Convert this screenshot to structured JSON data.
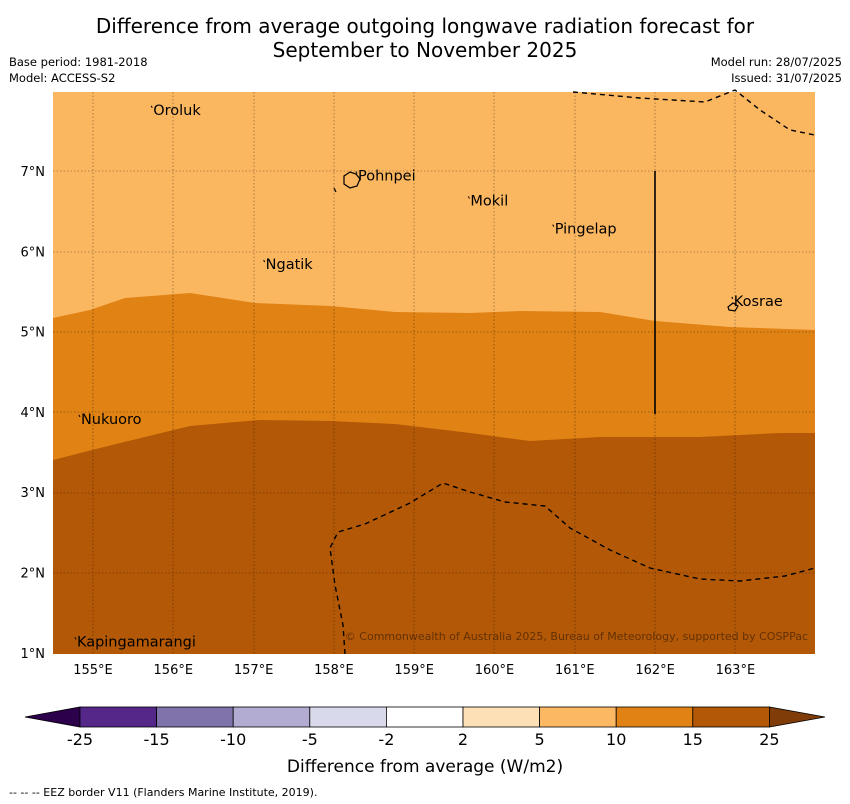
{
  "header": {
    "title_line1": "Difference from average outgoing longwave radiation forecast for",
    "title_line2": "September to November 2025",
    "base_period": "Base period: 1981-2018",
    "model": "Model: ACCESS-S2",
    "model_run": "Model run: 28/07/2025",
    "issued": "Issued: 31/07/2025"
  },
  "map": {
    "lat_labels": [
      "7°N",
      "6°N",
      "5°N",
      "4°N",
      "3°N",
      "2°N",
      "1°N"
    ],
    "lon_labels": [
      "155°E",
      "156°E",
      "157°E",
      "158°E",
      "159°E",
      "160°E",
      "161°E",
      "162°E",
      "163°E"
    ],
    "places": [
      {
        "name": "Oroluk",
        "lon": 155.75,
        "lat": 7.7
      },
      {
        "name": "Pohnpei",
        "lon": 158.3,
        "lat": 6.88
      },
      {
        "name": "Mokil",
        "lon": 159.7,
        "lat": 6.57
      },
      {
        "name": "Pingelap",
        "lon": 160.75,
        "lat": 6.22
      },
      {
        "name": "Ngatik",
        "lon": 157.15,
        "lat": 5.78
      },
      {
        "name": "Kosrae",
        "lon": 162.98,
        "lat": 5.32
      },
      {
        "name": "Nukuoro",
        "lon": 154.85,
        "lat": 3.85
      },
      {
        "name": "Kapingamarangi",
        "lon": 154.8,
        "lat": 1.08
      }
    ],
    "copyright": "© Commonwealth of Australia 2025, Bureau of Meteorology, supported by COSPPac",
    "colors": {
      "band_5_10": "#fbb660",
      "band_10_15": "#e08214",
      "band_15_25": "#b35806"
    }
  },
  "legend": {
    "ticks": [
      "-25",
      "-15",
      "-10",
      "-5",
      "-2",
      "2",
      "5",
      "10",
      "15",
      "25"
    ],
    "colors": [
      "#542788",
      "#8073ac",
      "#b2abd2",
      "#d8daeb",
      "#ffffff",
      "#fee0b6",
      "#fdb863",
      "#e08214",
      "#b35806"
    ],
    "low_extend_color": "#2d004b",
    "high_extend_color": "#7f3b08",
    "label": "Difference from average (W/m2)"
  },
  "footer": {
    "eez_note": "-- --  -- EEZ border V11 (Flanders Marine Institute, 2019)."
  }
}
